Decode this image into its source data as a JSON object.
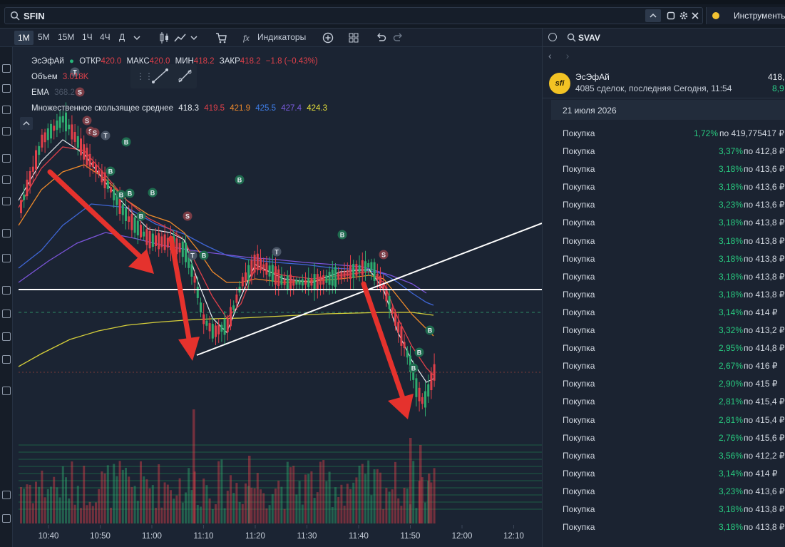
{
  "header": {
    "search_value": "SFIN",
    "instruments_label": "Инструменты"
  },
  "toolbar": {
    "intervals": [
      "1М",
      "5М",
      "15М",
      "1Ч",
      "4Ч",
      "Д"
    ],
    "active_interval": "1М",
    "indicators_label": "Индикаторы"
  },
  "legend": {
    "name": "ЭсЭфАй",
    "open_label": "ОТКР",
    "open_value": "420.0",
    "max_label": "МАКС",
    "max_value": "420.0",
    "min_label": "МИН",
    "min_value": "418.2",
    "close_label": "ЗАКР",
    "close_value": "418.2",
    "change": "−1.8 (−0.43%)",
    "volume_label": "Объем",
    "volume_value": "3.018K",
    "ema_label": "EMA",
    "ema_value": "368.2",
    "ma_label": "Множественное скользящее среднее",
    "ma_values": [
      "418.3",
      "419.5",
      "421.9",
      "425.5",
      "427.4",
      "424.3"
    ],
    "ma_colors": [
      "#e8edf3",
      "#e0404a",
      "#ef8a2b",
      "#3f7ee8",
      "#7c5ce0",
      "#e8e23a"
    ]
  },
  "time_axis": [
    "10:40",
    "10:50",
    "11:00",
    "11:10",
    "11:20",
    "11:30",
    "11:40",
    "11:50",
    "12:00",
    "12:10"
  ],
  "colors": {
    "up": "#2eab6f",
    "down": "#e0404a",
    "arrow": "#e5322d",
    "line": "#ffffff",
    "brand": "#f3c324"
  },
  "right_panel": {
    "search_value": "SVAV",
    "company_name": "ЭсЭфАй",
    "company_desc": "4085 сделок, последняя Сегодня, 11:54",
    "company_price": "418,",
    "company_change": "8,9",
    "logo_text": "sfi",
    "date": "21 июля 2026",
    "trades": [
      {
        "type": "Покупка",
        "pct": "1,72%",
        "price": "по 419,775417 ₽"
      },
      {
        "type": "Покупка",
        "pct": "3,37%",
        "price": "по 412,8 ₽"
      },
      {
        "type": "Покупка",
        "pct": "3,18%",
        "price": "по 413,6 ₽"
      },
      {
        "type": "Покупка",
        "pct": "3,18%",
        "price": "по 413,6 ₽"
      },
      {
        "type": "Покупка",
        "pct": "3,23%",
        "price": "по 413,6 ₽"
      },
      {
        "type": "Покупка",
        "pct": "3,18%",
        "price": "по 413,8 ₽"
      },
      {
        "type": "Покупка",
        "pct": "3,18%",
        "price": "по 413,8 ₽"
      },
      {
        "type": "Покупка",
        "pct": "3,18%",
        "price": "по 413,8 ₽"
      },
      {
        "type": "Покупка",
        "pct": "3,18%",
        "price": "по 413,8 ₽"
      },
      {
        "type": "Покупка",
        "pct": "3,18%",
        "price": "по 413,8 ₽"
      },
      {
        "type": "Покупка",
        "pct": "3,14%",
        "price": "по 414 ₽"
      },
      {
        "type": "Покупка",
        "pct": "3,32%",
        "price": "по 413,2 ₽"
      },
      {
        "type": "Покупка",
        "pct": "2,95%",
        "price": "по 414,8 ₽"
      },
      {
        "type": "Покупка",
        "pct": "2,67%",
        "price": "по 416 ₽"
      },
      {
        "type": "Покупка",
        "pct": "2,90%",
        "price": "по 415 ₽"
      },
      {
        "type": "Покупка",
        "pct": "2,81%",
        "price": "по 415,4 ₽"
      },
      {
        "type": "Покупка",
        "pct": "2,81%",
        "price": "по 415,4 ₽"
      },
      {
        "type": "Покупка",
        "pct": "2,76%",
        "price": "по 415,6 ₽"
      },
      {
        "type": "Покупка",
        "pct": "3,56%",
        "price": "по 412,2 ₽"
      },
      {
        "type": "Покупка",
        "pct": "3,14%",
        "price": "по 414 ₽"
      },
      {
        "type": "Покупка",
        "pct": "3,23%",
        "price": "по 413,6 ₽"
      },
      {
        "type": "Покупка",
        "pct": "3,18%",
        "price": "по 413,8 ₽"
      },
      {
        "type": "Покупка",
        "pct": "3,18%",
        "price": "по 413,8 ₽"
      }
    ]
  }
}
